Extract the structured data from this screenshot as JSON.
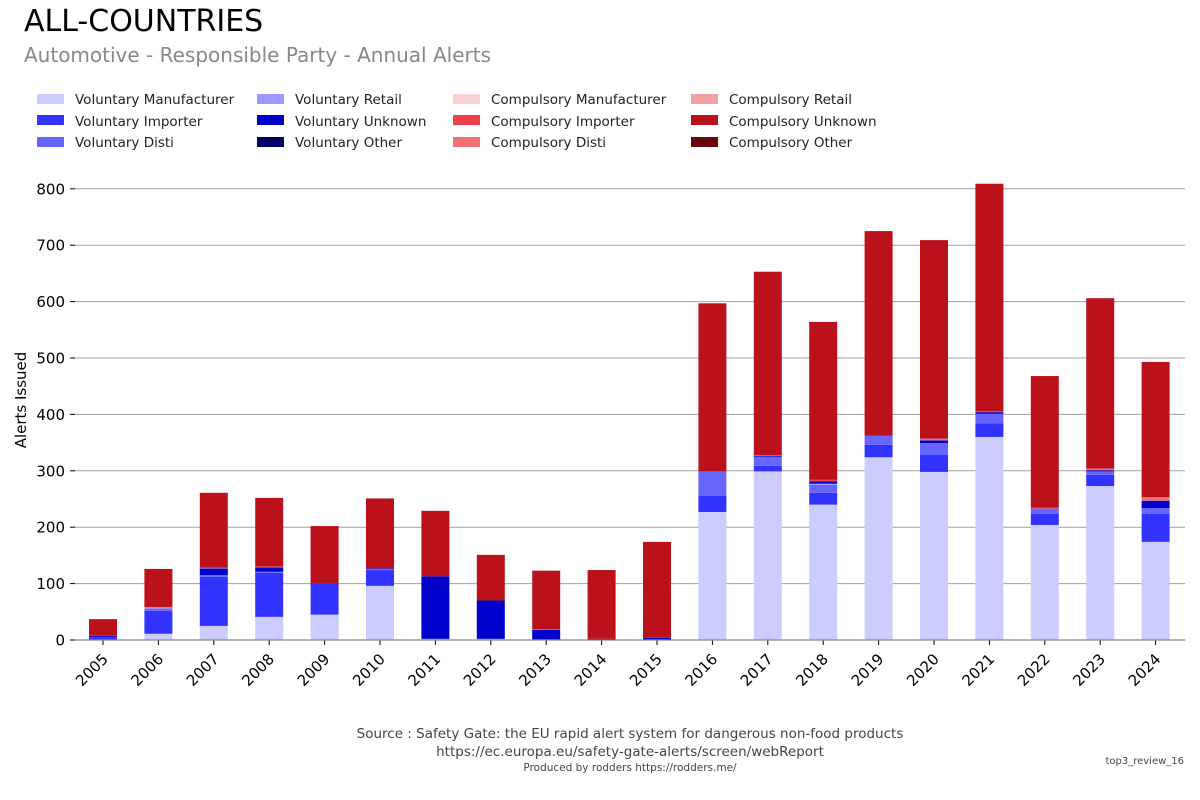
{
  "header": {
    "title": "ALL-COUNTRIES",
    "subtitle": "Automotive - Responsible Party - Annual Alerts"
  },
  "footer": {
    "source": "Source : Safety Gate: the EU rapid alert system for dangerous non-food products",
    "url": "https://ec.europa.eu/safety-gate-alerts/screen/webReport",
    "produced_by": "Produced by rodders https://rodders.me/",
    "tag": "top3_review_16"
  },
  "chart_data": {
    "type": "bar",
    "stacked": true,
    "title": "ALL-COUNTRIES",
    "subtitle": "Automotive - Responsible Party - Annual Alerts",
    "xlabel": "",
    "ylabel": "Alerts Issued",
    "ylim": [
      0,
      830
    ],
    "yticks": [
      0,
      100,
      200,
      300,
      400,
      500,
      600,
      700,
      800
    ],
    "grid": true,
    "legend_position": "top",
    "categories": [
      "2005",
      "2006",
      "2007",
      "2008",
      "2009",
      "2010",
      "2011",
      "2012",
      "2013",
      "2014",
      "2015",
      "2016",
      "2017",
      "2018",
      "2019",
      "2020",
      "2021",
      "2022",
      "2023",
      "2024"
    ],
    "series": [
      {
        "name": "Voluntary Manufacturer",
        "color": "#ccccff",
        "values": [
          0,
          11,
          25,
          41,
          45,
          96,
          2,
          2,
          1,
          0,
          0,
          227,
          299,
          240,
          324,
          298,
          360,
          204,
          273,
          174
        ]
      },
      {
        "name": "Voluntary Importer",
        "color": "#3333ff",
        "values": [
          5,
          41,
          87,
          78,
          55,
          28,
          0,
          0,
          0,
          0,
          0,
          29,
          10,
          21,
          22,
          30,
          24,
          20,
          20,
          50
        ]
      },
      {
        "name": "Voluntary Disti",
        "color": "#6666ff",
        "values": [
          0,
          4,
          3,
          2,
          0,
          2,
          0,
          0,
          0,
          0,
          0,
          43,
          16,
          14,
          16,
          21,
          17,
          9,
          6,
          10
        ]
      },
      {
        "name": "Voluntary Retail",
        "color": "#9999ff",
        "values": [
          0,
          0,
          0,
          0,
          0,
          0,
          0,
          0,
          0,
          0,
          0,
          0,
          0,
          2,
          0,
          0,
          0,
          0,
          0,
          0
        ]
      },
      {
        "name": "Voluntary Unknown",
        "color": "#0000cc",
        "values": [
          2,
          0,
          12,
          8,
          0,
          1,
          111,
          68,
          17,
          2,
          4,
          0,
          2,
          4,
          0,
          5,
          3,
          0,
          2,
          13
        ]
      },
      {
        "name": "Voluntary Other",
        "color": "#000066",
        "values": [
          0,
          0,
          0,
          0,
          0,
          0,
          0,
          0,
          0,
          0,
          0,
          0,
          0,
          0,
          0,
          0,
          0,
          0,
          0,
          0
        ]
      },
      {
        "name": "Compulsory Manufacturer",
        "color": "#f8d0d4",
        "values": [
          0,
          0,
          0,
          0,
          0,
          0,
          0,
          0,
          0,
          0,
          0,
          0,
          0,
          0,
          0,
          0,
          0,
          0,
          0,
          0
        ]
      },
      {
        "name": "Compulsory Importer",
        "color": "#ee4049",
        "values": [
          1,
          0,
          0,
          0,
          0,
          0,
          0,
          0,
          1,
          0,
          0,
          0,
          0,
          3,
          0,
          0,
          2,
          2,
          0,
          0
        ]
      },
      {
        "name": "Compulsory Disti",
        "color": "#f07078",
        "values": [
          0,
          0,
          0,
          0,
          0,
          0,
          0,
          0,
          0,
          0,
          0,
          0,
          0,
          0,
          0,
          3,
          0,
          0,
          3,
          6
        ]
      },
      {
        "name": "Compulsory Retail",
        "color": "#f5a0a5",
        "values": [
          0,
          2,
          1,
          1,
          0,
          0,
          0,
          0,
          0,
          0,
          0,
          0,
          1,
          0,
          0,
          0,
          0,
          0,
          0,
          0
        ]
      },
      {
        "name": "Compulsory Unknown",
        "color": "#bb111a",
        "values": [
          29,
          68,
          133,
          122,
          102,
          124,
          116,
          81,
          104,
          122,
          170,
          298,
          325,
          280,
          363,
          352,
          403,
          233,
          302,
          240
        ]
      },
      {
        "name": "Compulsory Other",
        "color": "#66080d",
        "values": [
          0,
          0,
          0,
          0,
          0,
          0,
          0,
          0,
          0,
          0,
          0,
          0,
          0,
          0,
          0,
          0,
          0,
          0,
          0,
          0
        ]
      }
    ]
  }
}
